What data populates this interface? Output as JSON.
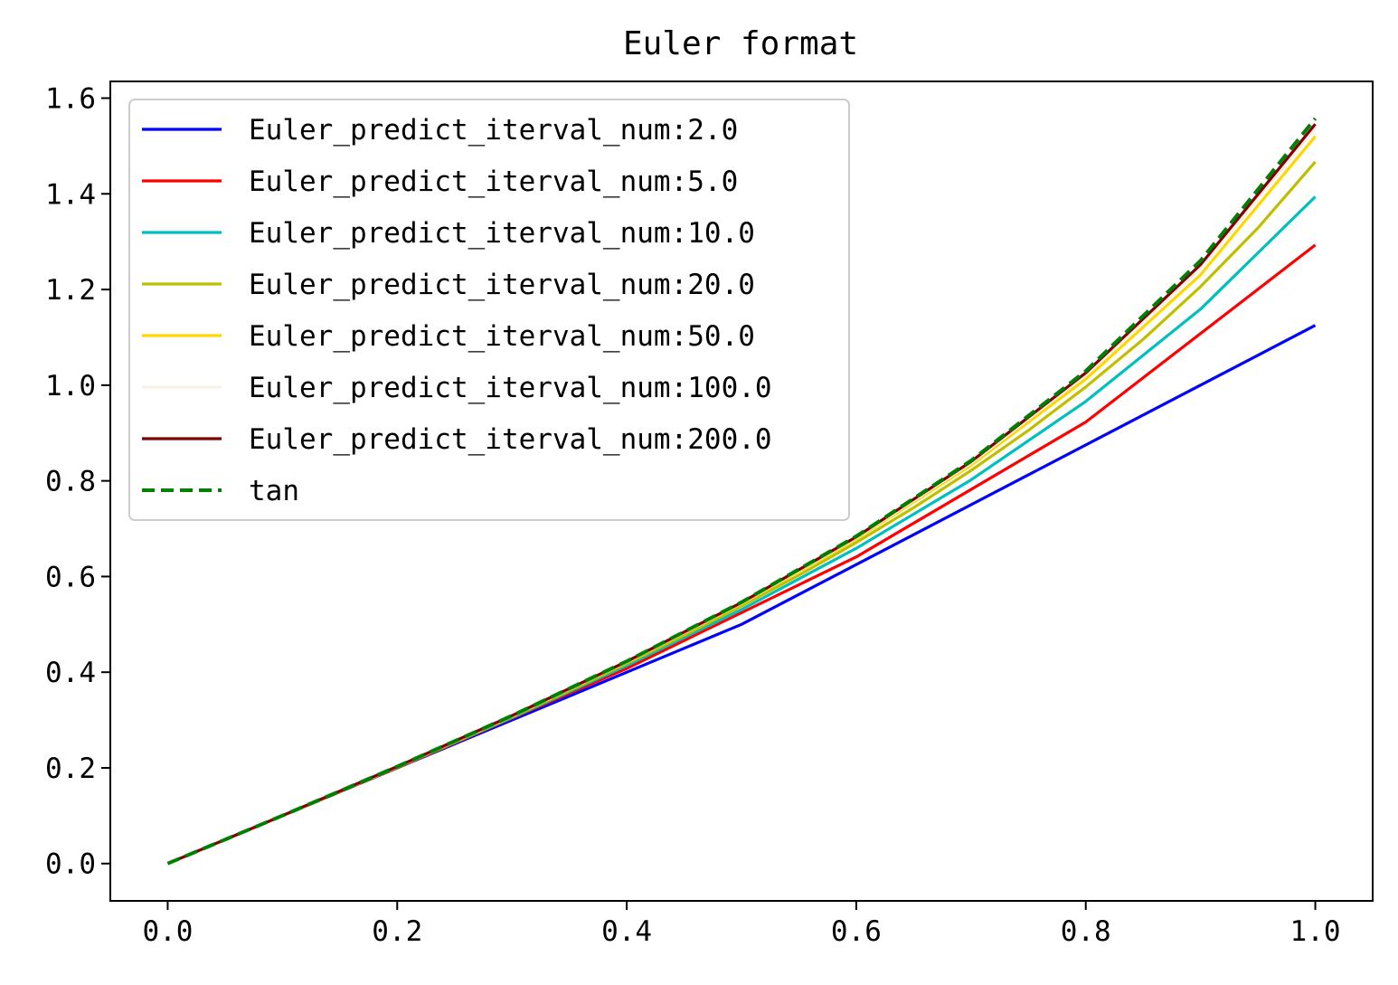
{
  "chart_data": {
    "type": "line",
    "title": "Euler format",
    "xlabel": "",
    "ylabel": "",
    "xlim": [
      -0.05,
      1.05
    ],
    "ylim": [
      -0.078,
      1.635
    ],
    "xticks": [
      0.0,
      0.2,
      0.4,
      0.6,
      0.8,
      1.0
    ],
    "xtick_labels": [
      "0.0",
      "0.2",
      "0.4",
      "0.6",
      "0.8",
      "1.0"
    ],
    "yticks": [
      0.0,
      0.2,
      0.4,
      0.6,
      0.8,
      1.0,
      1.2,
      1.4,
      1.6
    ],
    "ytick_labels": [
      "0.0",
      "0.2",
      "0.4",
      "0.6",
      "0.8",
      "1.0",
      "1.2",
      "1.4",
      "1.6"
    ],
    "grid": false,
    "legend_position": "top-left",
    "series": [
      {
        "name": "Euler_predict_iterval_num:2.0",
        "color": "#0000ff",
        "dash": "solid",
        "x": [
          0.0,
          0.5,
          1.0
        ],
        "y": [
          0.0,
          0.5,
          1.125
        ]
      },
      {
        "name": "Euler_predict_iterval_num:5.0",
        "color": "#ff0000",
        "dash": "solid",
        "x": [
          0.0,
          0.2,
          0.4,
          0.6,
          0.8,
          1.0
        ],
        "y": [
          0.0,
          0.2,
          0.408,
          0.641,
          0.923,
          1.293
        ]
      },
      {
        "name": "Euler_predict_iterval_num:10.0",
        "color": "#00bfbf",
        "dash": "solid",
        "x": [
          0.0,
          0.1,
          0.2,
          0.3,
          0.4,
          0.5,
          0.6,
          0.7,
          0.8,
          0.9,
          1.0
        ],
        "y": [
          0.0,
          0.1,
          0.201,
          0.305,
          0.414,
          0.531,
          0.659,
          0.802,
          0.966,
          1.159,
          1.394
        ]
      },
      {
        "name": "Euler_predict_iterval_num:20.0",
        "color": "#bfbf00",
        "dash": "solid",
        "x": [
          0.0,
          0.05,
          0.1,
          0.15,
          0.2,
          0.25,
          0.3,
          0.35,
          0.4,
          0.45,
          0.5,
          0.55,
          0.6,
          0.65,
          0.7,
          0.75,
          0.8,
          0.85,
          0.9,
          0.95,
          1.0
        ],
        "y": [
          0.0,
          0.05,
          0.1001,
          0.1507,
          0.2018,
          0.2538,
          0.307,
          0.3617,
          0.4183,
          0.477,
          0.5384,
          0.6029,
          0.6711,
          0.7439,
          0.8217,
          0.9055,
          0.9964,
          1.0959,
          1.206,
          1.3287,
          1.467
        ]
      },
      {
        "name": "Euler_predict_iterval_num:50.0",
        "color": "#ffd700",
        "dash": "solid",
        "x": [
          0.0,
          0.1,
          0.2,
          0.3,
          0.4,
          0.5,
          0.6,
          0.7,
          0.8,
          0.9,
          1.0
        ],
        "y": [
          0.0,
          0.1002,
          0.2022,
          0.3084,
          0.421,
          0.5431,
          0.6785,
          0.8325,
          1.0125,
          1.2305,
          1.52
        ]
      },
      {
        "name": "Euler_predict_iterval_num:100.0",
        "color": "#faf0e6",
        "dash": "solid",
        "x": [
          0.0,
          0.1,
          0.2,
          0.3,
          0.4,
          0.5,
          0.6,
          0.7,
          0.8,
          0.9,
          1.0
        ],
        "y": [
          0.0,
          0.1003,
          0.2026,
          0.3089,
          0.4217,
          0.5447,
          0.6812,
          0.8367,
          1.021,
          1.2435,
          1.537
        ]
      },
      {
        "name": "Euler_predict_iterval_num:200.0",
        "color": "#800000",
        "dash": "solid",
        "x": [
          0.0,
          0.1,
          0.2,
          0.3,
          0.4,
          0.5,
          0.6,
          0.7,
          0.8,
          0.9,
          1.0
        ],
        "y": [
          0.0,
          0.1003,
          0.2027,
          0.3092,
          0.4224,
          0.5456,
          0.6828,
          0.8401,
          1.0258,
          1.2519,
          1.5455
        ]
      },
      {
        "name": "tan",
        "color": "#008000",
        "dash": "dashed",
        "x": [
          0.0,
          0.1,
          0.2,
          0.3,
          0.4,
          0.5,
          0.6,
          0.7,
          0.8,
          0.9,
          1.0
        ],
        "y": [
          0.0,
          0.1003,
          0.2027,
          0.3093,
          0.4228,
          0.5463,
          0.6841,
          0.8423,
          1.0296,
          1.2602,
          1.5574
        ]
      }
    ]
  }
}
